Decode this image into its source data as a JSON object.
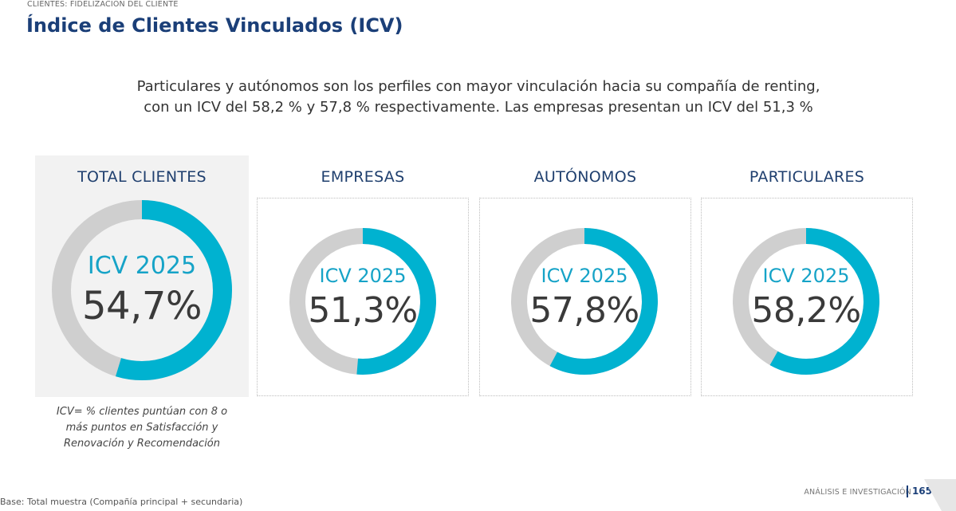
{
  "header": {
    "section": "CLIENTES: FIDELIZACIÓN DEL CLIENTE",
    "title": "Índice de Clientes Vinculados (ICV)"
  },
  "summary": {
    "line1": "Particulares y autónomos son los perfiles con mayor vinculación hacia su compañía de renting,",
    "line2": "con un ICV del 58,2 % y 57,8 % respectivamente. Las empresas presentan un ICV del 51,3 %"
  },
  "chart_data": {
    "type": "pie",
    "variant": "donut",
    "metric_label": "ICV 2025",
    "categories": [
      "TOTAL CLIENTES",
      "EMPRESAS",
      "AUTÓNOMOS",
      "PARTICULARES"
    ],
    "values": [
      54.7,
      51.3,
      57.8,
      58.2
    ],
    "value_labels": [
      "54,7%",
      "51,3%",
      "57,8%",
      "58,2%"
    ],
    "unit": "%",
    "max": 100,
    "colors": {
      "value": "#00b2d0",
      "remainder": "#cfcfcf"
    }
  },
  "note": {
    "line1": "ICV= % clientes puntúan con 8 o",
    "line2": "más puntos en Satisfacción y",
    "line3": "Renovación y Recomendación"
  },
  "footer": {
    "base": "Base: Total muestra (Compañía principal + secundaria)",
    "department": "ANÁLISIS E INVESTIGACIÓN",
    "page_number": "165"
  }
}
